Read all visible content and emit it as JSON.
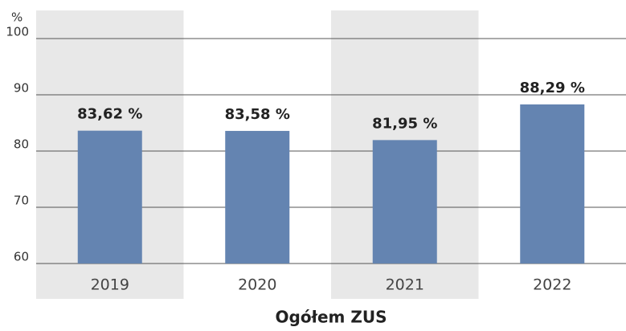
{
  "chart_data": {
    "type": "bar",
    "title": "Ogółem ZUS",
    "y_label": "%",
    "categories": [
      "2019",
      "2020",
      "2021",
      "2022"
    ],
    "values": [
      83.62,
      83.58,
      81.95,
      88.29
    ],
    "value_labels": [
      "83,62 %",
      "83,58 %",
      "81,95 %",
      "88,29 %"
    ],
    "color": "#6484b1",
    "ylim": [
      60,
      105
    ],
    "yticks": [
      60,
      70,
      80,
      90,
      100
    ],
    "grid": true
  }
}
